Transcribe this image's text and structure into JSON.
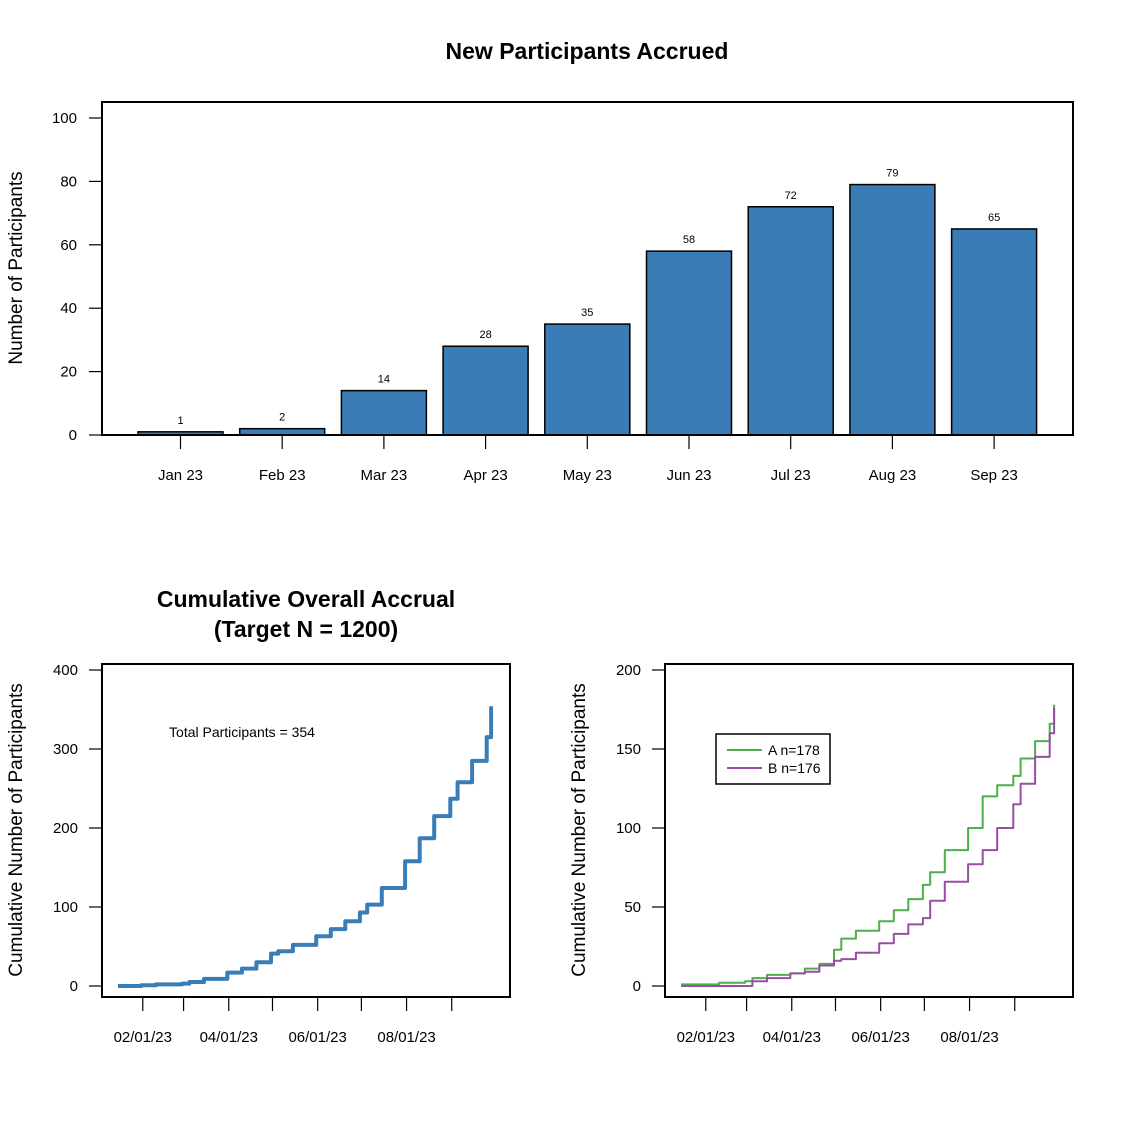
{
  "colors": {
    "bar": "#3A7DB6",
    "overall": "#3A7DB6",
    "A": "#4DAF4A",
    "B": "#984EA3"
  },
  "chart_data": [
    {
      "type": "bar",
      "title": "New Participants Accrued",
      "xlabel": "",
      "ylabel": "Number of Participants",
      "categories": [
        "Jan 23",
        "Feb 23",
        "Mar 23",
        "Apr 23",
        "May 23",
        "Jun 23",
        "Jul 23",
        "Aug 23",
        "Sep 23"
      ],
      "values": [
        1,
        2,
        14,
        28,
        35,
        58,
        72,
        79,
        65
      ],
      "data_labels": [
        "1",
        "2",
        "14",
        "28",
        "35",
        "58",
        "72",
        "79",
        "65"
      ],
      "ylim": [
        0,
        100
      ],
      "yticks": [
        0,
        20,
        40,
        60,
        80,
        100
      ],
      "grid": false
    },
    {
      "type": "line",
      "title": "Cumulative Overall Accrual",
      "subtitle": "(Target N = 1200)",
      "xlabel": "",
      "ylabel": "Cumulative Number of Participants",
      "annotation": "Total Participants = 354",
      "x_range": [
        "2023-01-15",
        "2023-09-30"
      ],
      "xticks": [
        "2023-02-01",
        "2023-03-01",
        "2023-04-01",
        "2023-05-01",
        "2023-06-01",
        "2023-07-01",
        "2023-08-01",
        "2023-09-01"
      ],
      "xtick_labels": [
        "02/01/23",
        "",
        "04/01/23",
        "",
        "06/01/23",
        "",
        "08/01/23",
        ""
      ],
      "ylim": [
        0,
        400
      ],
      "yticks": [
        0,
        100,
        200,
        300,
        400
      ],
      "series": [
        {
          "x": [
            "2023-01-15",
            "2023-01-31",
            "2023-02-10",
            "2023-02-28",
            "2023-03-05",
            "2023-03-15",
            "2023-03-31",
            "2023-04-10",
            "2023-04-20",
            "2023-04-30",
            "2023-05-05",
            "2023-05-15",
            "2023-05-31",
            "2023-06-10",
            "2023-06-20",
            "2023-06-30",
            "2023-07-05",
            "2023-07-15",
            "2023-07-31",
            "2023-08-10",
            "2023-08-20",
            "2023-08-31",
            "2023-09-05",
            "2023-09-15",
            "2023-09-25",
            "2023-09-28"
          ],
          "values": [
            0,
            1,
            2,
            3,
            5,
            9,
            17,
            22,
            30,
            41,
            44,
            52,
            63,
            72,
            82,
            93,
            103,
            124,
            158,
            187,
            215,
            237,
            258,
            285,
            315,
            354
          ]
        }
      ],
      "grid": false
    },
    {
      "type": "line",
      "title": "",
      "xlabel": "",
      "ylabel": "Cumulative Number of Participants",
      "x_range": [
        "2023-01-15",
        "2023-09-30"
      ],
      "xticks": [
        "2023-02-01",
        "2023-03-01",
        "2023-04-01",
        "2023-05-01",
        "2023-06-01",
        "2023-07-01",
        "2023-08-01",
        "2023-09-01"
      ],
      "xtick_labels": [
        "02/01/23",
        "",
        "04/01/23",
        "",
        "06/01/23",
        "",
        "08/01/23",
        ""
      ],
      "ylim": [
        0,
        200
      ],
      "yticks": [
        0,
        50,
        100,
        150,
        200
      ],
      "legend": "top-left",
      "series": [
        {
          "name": "A n=178",
          "x": [
            "2023-01-15",
            "2023-01-31",
            "2023-02-10",
            "2023-02-28",
            "2023-03-05",
            "2023-03-15",
            "2023-03-31",
            "2023-04-10",
            "2023-04-20",
            "2023-04-30",
            "2023-05-05",
            "2023-05-15",
            "2023-05-31",
            "2023-06-10",
            "2023-06-20",
            "2023-06-30",
            "2023-07-05",
            "2023-07-15",
            "2023-07-31",
            "2023-08-10",
            "2023-08-20",
            "2023-08-31",
            "2023-09-05",
            "2023-09-15",
            "2023-09-25",
            "2023-09-28"
          ],
          "values": [
            1,
            1,
            2,
            3,
            5,
            7,
            8,
            11,
            14,
            23,
            30,
            35,
            41,
            48,
            55,
            64,
            72,
            86,
            100,
            120,
            127,
            133,
            144,
            155,
            166,
            178
          ]
        },
        {
          "name": "B n=176",
          "x": [
            "2023-01-15",
            "2023-01-31",
            "2023-02-28",
            "2023-03-05",
            "2023-03-15",
            "2023-03-31",
            "2023-04-10",
            "2023-04-20",
            "2023-04-30",
            "2023-05-05",
            "2023-05-15",
            "2023-05-31",
            "2023-06-10",
            "2023-06-20",
            "2023-06-30",
            "2023-07-05",
            "2023-07-15",
            "2023-07-31",
            "2023-08-10",
            "2023-08-20",
            "2023-08-31",
            "2023-09-05",
            "2023-09-15",
            "2023-09-25",
            "2023-09-28"
          ],
          "values": [
            0,
            0,
            0,
            3,
            5,
            8,
            9,
            13,
            16,
            17,
            21,
            27,
            33,
            39,
            43,
            54,
            66,
            77,
            86,
            100,
            115,
            128,
            145,
            160,
            176
          ]
        }
      ],
      "grid": false
    }
  ]
}
